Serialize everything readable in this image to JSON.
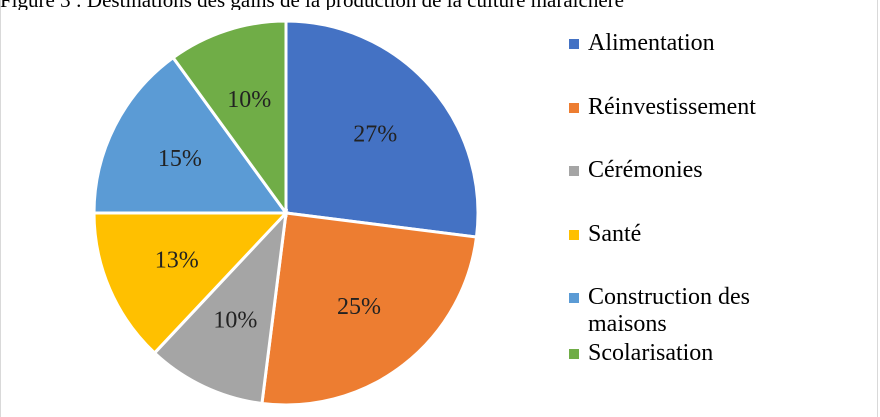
{
  "caption": "Figure 3 : Destinations des gains de la production de la culture maraîchère",
  "chart_data": {
    "type": "pie",
    "title": "",
    "slices": [
      {
        "label": "Alimentation",
        "value": 27,
        "display": "27%",
        "color": "#4472C4"
      },
      {
        "label": "Réinvestissement",
        "value": 25,
        "display": "25%",
        "color": "#ED7D31"
      },
      {
        "label": "Cérémonies",
        "value": 10,
        "display": "10%",
        "color": "#A5A5A5"
      },
      {
        "label": "Santé",
        "value": 13,
        "display": "13%",
        "color": "#FFC000"
      },
      {
        "label": "Construction des maisons",
        "value": 15,
        "display": "15%",
        "color": "#5B9BD5"
      },
      {
        "label": "Scolarisation",
        "value": 10,
        "display": "10%",
        "color": "#70AD47"
      }
    ],
    "legend_placement": "right"
  }
}
